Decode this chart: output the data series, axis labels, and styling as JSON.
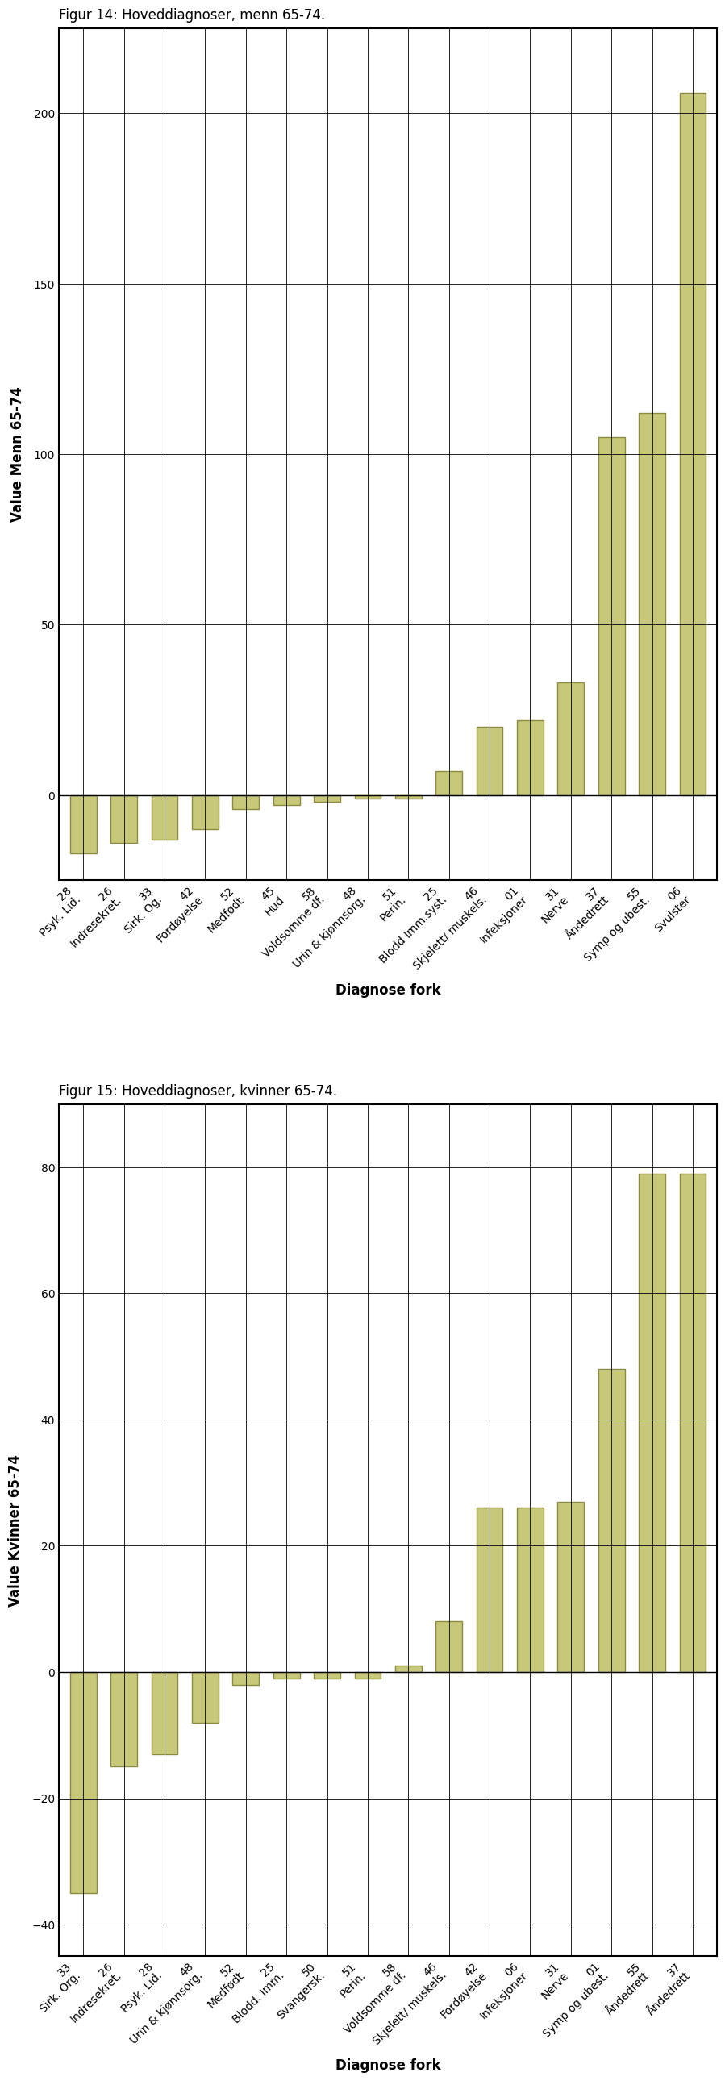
{
  "fig1_title": "Figur 14: Hoveddiagnoser, menn 65-74.",
  "fig1_ylabel": "Value Menn 65-74",
  "fig1_xlabel": "Diagnose fork",
  "fig1_categories": [
    "28\nPsyk. Lid.",
    "26\nIndresekret.",
    "33\nSirk. Og.",
    "42\nFordøyelse",
    "52\nMedfødt",
    "45\nHud",
    "58\nVoldsomme df.",
    "48\nUrin & kjønnsorg.",
    "51\nPerin.",
    "25\nBlodd Imm.syst.",
    "46\nSkjelett/ muskels.",
    "01\nInfeksjoner",
    "31\nNerve",
    "37\nÅndedrett",
    "55\nSymp og ubest.",
    "06\nSvulster"
  ],
  "fig1_values": [
    -17,
    -14,
    -13,
    -10,
    -4,
    -3,
    -2,
    -1,
    -1,
    7,
    20,
    22,
    33,
    105,
    112,
    206
  ],
  "fig2_title": "Figur 15: Hoveddiagnoser, kvinner 65-74.",
  "fig2_ylabel": "Value Kvinner 65-74",
  "fig2_xlabel": "Diagnose fork",
  "fig2_categories": [
    "33\nSirk. Org.",
    "26\nIndresekret.",
    "28\nPsyk. Lid.",
    "48\nUrin & kjønnsorg.",
    "52\nMedfødt",
    "25\nBlodd. Imm.",
    "50\nSvangersk.",
    "51\nPerin.",
    "58\nVoldsomme df.",
    "46\nSkjelett/ muskels.",
    "42\nFordøyelse",
    "06\nInfeksjoner",
    "31\nNerve",
    "01\nSymp og ubest.",
    "55\nÅndedrett",
    "37\nÅndedrett"
  ],
  "fig2_values": [
    -35,
    -15,
    -13,
    -8,
    -2,
    -1,
    -1,
    -1,
    1,
    8,
    26,
    26,
    27,
    48,
    79,
    79
  ],
  "bar_color": "#c8c87a",
  "bar_edgecolor": "#8b8b40",
  "ylim1": [
    -25,
    225
  ],
  "ylim2": [
    -45,
    90
  ],
  "yticks1": [
    0,
    50,
    100,
    150,
    200
  ],
  "yticks2": [
    -40,
    -20,
    0,
    20,
    40,
    60,
    80
  ],
  "background_color": "#ffffff"
}
